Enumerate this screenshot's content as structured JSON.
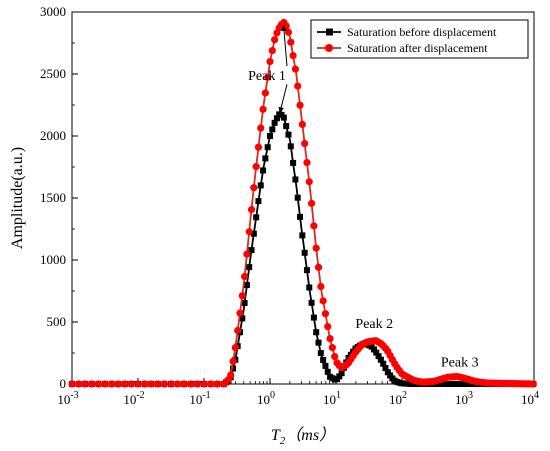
{
  "chart_data": {
    "type": "line",
    "xlabel": {
      "main": "T",
      "sub": "2",
      "unit": "（ms）"
    },
    "ylabel": "Amplitude(a.u.)",
    "xscale": "log",
    "xlim": [
      0.001,
      10000
    ],
    "ylim": [
      0,
      3000
    ],
    "xticks": [
      {
        "value": 0.001,
        "base": "10",
        "exp": "-3"
      },
      {
        "value": 0.01,
        "base": "10",
        "exp": "-2"
      },
      {
        "value": 0.1,
        "base": "10",
        "exp": "-1"
      },
      {
        "value": 1,
        "base": "10",
        "exp": "0"
      },
      {
        "value": 10,
        "base": "10",
        "exp": "1"
      },
      {
        "value": 100,
        "base": "10",
        "exp": "2"
      },
      {
        "value": 1000,
        "base": "10",
        "exp": "3"
      },
      {
        "value": 10000,
        "base": "10",
        "exp": "4"
      }
    ],
    "yticks": [
      0,
      500,
      1000,
      1500,
      2000,
      2500,
      3000
    ],
    "grid": false,
    "legend": "top-right",
    "colors": {
      "before": "#000000",
      "after": "#ff0000",
      "after_line": "#d62a2a"
    },
    "series": [
      {
        "name": "Saturation before displacement",
        "marker": "square",
        "x": [
          0.001,
          0.01,
          0.1,
          0.2,
          0.25,
          0.3,
          0.4,
          0.5,
          0.6,
          0.7,
          0.8,
          1.0,
          1.2,
          1.4,
          1.6,
          2.0,
          2.5,
          3.0,
          4.0,
          5.0,
          6.0,
          8.0,
          10,
          12,
          15,
          20,
          25,
          30,
          35,
          40,
          50,
          60,
          70,
          80,
          100,
          150,
          1000,
          10000
        ],
        "y": [
          0,
          0,
          0,
          0,
          40,
          200,
          600,
          1000,
          1300,
          1550,
          1750,
          2000,
          2120,
          2180,
          2160,
          1970,
          1600,
          1250,
          750,
          420,
          230,
          60,
          30,
          80,
          200,
          290,
          320,
          320,
          300,
          260,
          180,
          100,
          50,
          20,
          5,
          0,
          0,
          0
        ]
      },
      {
        "name": "Saturation after displacement",
        "marker": "circle",
        "x": [
          0.001,
          0.01,
          0.1,
          0.2,
          0.25,
          0.3,
          0.4,
          0.5,
          0.6,
          0.7,
          0.8,
          1.0,
          1.2,
          1.4,
          1.6,
          1.8,
          2.0,
          2.5,
          3.0,
          4.0,
          5.0,
          6.0,
          8.0,
          10,
          12,
          15,
          20,
          25,
          30,
          40,
          50,
          60,
          80,
          100,
          150,
          200,
          300,
          400,
          500,
          700,
          900,
          1200,
          1500,
          2000,
          3000,
          5000,
          10000
        ],
        "y": [
          0,
          0,
          0,
          0,
          50,
          300,
          800,
          1300,
          1700,
          2000,
          2250,
          2600,
          2800,
          2880,
          2920,
          2880,
          2800,
          2500,
          2150,
          1600,
          1100,
          750,
          380,
          180,
          130,
          160,
          260,
          320,
          340,
          350,
          320,
          270,
          150,
          80,
          30,
          15,
          20,
          40,
          55,
          60,
          45,
          25,
          15,
          8,
          5,
          3,
          0
        ]
      }
    ],
    "annotations": [
      {
        "label": "Peak 1",
        "x": 0.9,
        "y": 2450,
        "arrows": [
          {
            "x": 1.6,
            "y": 2900
          },
          {
            "x": 1.4,
            "y": 2180
          }
        ]
      },
      {
        "label": "Peak 2",
        "x": 38,
        "y": 450,
        "arrows": []
      },
      {
        "label": "Peak 3",
        "x": 750,
        "y": 140,
        "arrows": []
      }
    ]
  }
}
